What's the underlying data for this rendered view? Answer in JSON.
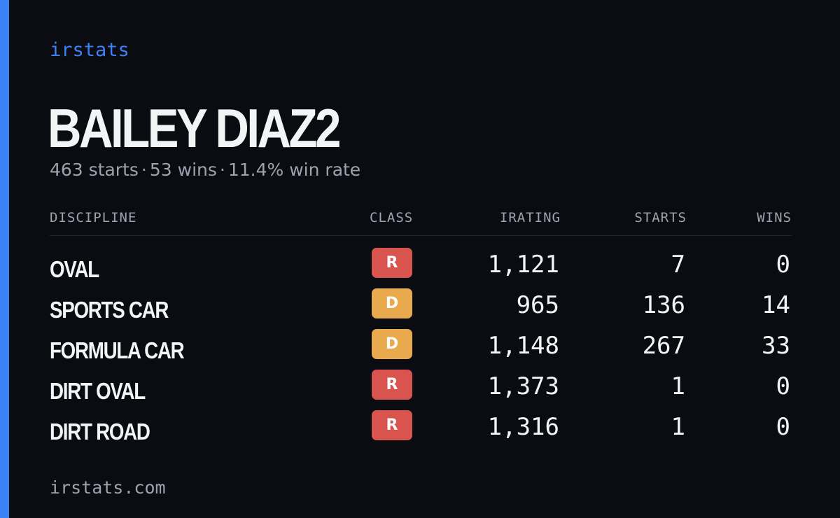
{
  "brand": "irstats",
  "driver_name": "BAILEY DIAZ2",
  "summary": {
    "starts": "463 starts",
    "wins": "53 wins",
    "win_rate": "11.4% win rate",
    "separator": "·"
  },
  "table": {
    "headers": {
      "discipline": "DISCIPLINE",
      "class": "CLASS",
      "irating": "IRATING",
      "starts": "STARTS",
      "wins": "WINS"
    },
    "rows": [
      {
        "discipline": "OVAL",
        "class": "R",
        "irating": "1,121",
        "starts": "7",
        "wins": "0"
      },
      {
        "discipline": "SPORTS CAR",
        "class": "D",
        "irating": "965",
        "starts": "136",
        "wins": "14"
      },
      {
        "discipline": "FORMULA CAR",
        "class": "D",
        "irating": "1,148",
        "starts": "267",
        "wins": "33"
      },
      {
        "discipline": "DIRT OVAL",
        "class": "R",
        "irating": "1,373",
        "starts": "1",
        "wins": "0"
      },
      {
        "discipline": "DIRT ROAD",
        "class": "R",
        "irating": "1,316",
        "starts": "1",
        "wins": "0"
      }
    ]
  },
  "class_colors": {
    "R": "#d9534f",
    "D": "#e9a94d"
  },
  "accent_color": "#3b82f6",
  "footer": "irstats.com"
}
